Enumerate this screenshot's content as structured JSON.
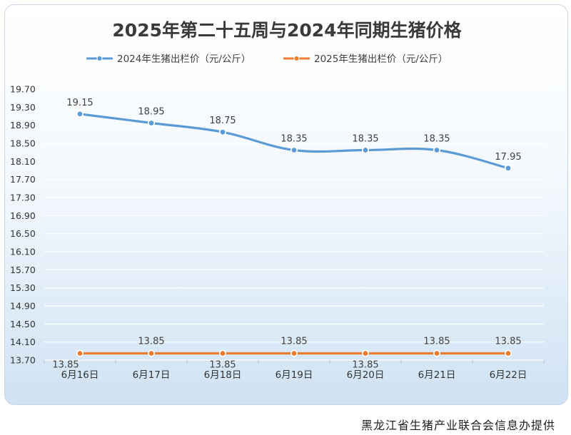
{
  "chart_data": {
    "type": "line",
    "title": "2025年第二十五周与2024年同期生猪价格",
    "categories": [
      "6月16日",
      "6月17日",
      "6月18日",
      "6月19日",
      "6月20日",
      "6月21日",
      "6月22日"
    ],
    "series": [
      {
        "name": "2024年生猪出栏价（元/公斤）",
        "color": "#5b9bd5",
        "values": [
          19.15,
          18.95,
          18.75,
          18.35,
          18.35,
          18.35,
          17.95
        ],
        "labels": [
          "19.15",
          "18.95",
          "18.75",
          "18.35",
          "18.35",
          "18.35",
          "17.95"
        ]
      },
      {
        "name": "2025年生猪出栏价（元/公斤）",
        "color": "#ed7d31",
        "values": [
          13.85,
          13.85,
          13.85,
          13.85,
          13.85,
          13.85,
          13.85
        ],
        "labels": [
          "13.85",
          "13.85",
          "13.85",
          "13.85",
          "13.85",
          "13.85",
          "13.85"
        ]
      }
    ],
    "yticks": [
      "19.70",
      "19.30",
      "18.90",
      "18.50",
      "18.10",
      "17.70",
      "17.30",
      "16.90",
      "16.50",
      "16.10",
      "15.70",
      "15.30",
      "14.90",
      "14.50",
      "14.10",
      "13.70"
    ],
    "ylim": [
      13.7,
      19.7
    ],
    "grid": true,
    "legend_position": "top"
  },
  "footer": {
    "credit": "黑龙江省生猪产业联合会信息办提供"
  }
}
